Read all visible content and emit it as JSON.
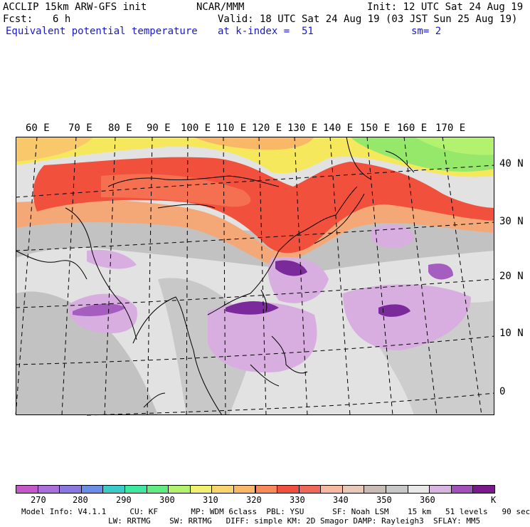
{
  "header": {
    "model": "ACCLIP 15km ARW-GFS init",
    "org": "NCAR/MMM",
    "init": "Init: 12 UTC Sat 24 Aug 19",
    "fcst_label": "Fcst:",
    "fcst_value": "6 h",
    "valid": "Valid: 18 UTC Sat 24 Aug 19 (03 JST Sun 25 Aug 19)",
    "field": "Equivalent potential temperature",
    "level": "at k-index =  51",
    "smooth": "sm= 2"
  },
  "map": {
    "lon_labels": [
      "60 E",
      "70 E",
      "80 E",
      "90 E",
      "100 E",
      "110 E",
      "120 E",
      "130 E",
      "140 E",
      "150 E",
      "160 E",
      "170 E"
    ],
    "lat_labels": [
      "40 N",
      "30 N",
      "20 N",
      "10 N",
      "0"
    ],
    "colors": {
      "warm_band": "#f0503c",
      "orange": "#f89a5c",
      "yellow": "#f5e85c",
      "green": "#96e86a",
      "gray": "#c2c2c2",
      "light_gray": "#e2e2e2",
      "lavender": "#d8aee0",
      "purple": "#a55ec0",
      "dark_purple": "#7a2a9a"
    }
  },
  "colorbar": {
    "colors": [
      "#c558c8",
      "#a870d8",
      "#8a78e0",
      "#6a8ee8",
      "#3ccac8",
      "#3ee8a0",
      "#60ec80",
      "#b2f26e",
      "#f2f070",
      "#f8d470",
      "#f8b868",
      "#f88a5a",
      "#f05040",
      "#f06858",
      "#f5b8a0",
      "#e8c8b8",
      "#c8bcb4",
      "#c8c8c8",
      "#e8e8e8",
      "#d8b4e0",
      "#a050b8",
      "#7a1a8a"
    ],
    "labels": [
      "270",
      "280",
      "290",
      "300",
      "310",
      "320",
      "330",
      "340",
      "350",
      "360",
      "K"
    ]
  },
  "footer": {
    "line1": "Model Info: V4.1.1     CU: KF       MP: WDM 6class  PBL: YSU      SF: Noah LSM    15 km   51 levels   90 sec",
    "line2": "LW: RRTMG    SW: RRTMG   DIFF: simple KM: 2D Smagor DAMP: Rayleigh3  SFLAY: MM5"
  }
}
